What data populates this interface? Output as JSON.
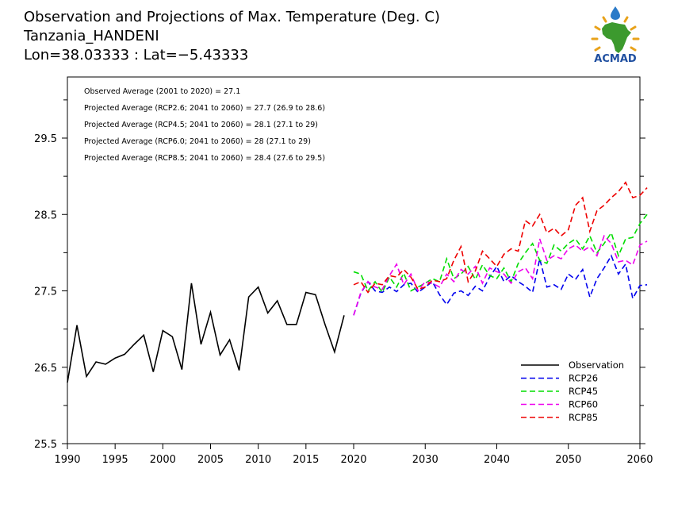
{
  "header": {
    "title": "Observation and Projections of Max. Temperature (Deg. C)",
    "location": "Tanzania_HANDENI",
    "coords": "Lon=38.03333 : Lat=−5.43333"
  },
  "logo": {
    "text": "ACMAD"
  },
  "stats": [
    "Observed Average (2001 to 2020) = 27.1",
    "Projected Average (RCP2.6; 2041 to 2060) = 27.7 (26.9 to 28.6)",
    "Projected Average (RCP4.5; 2041 to 2060) = 28.1 (27.1 to 29)",
    "Projected Average (RCP6.0; 2041 to 2060) = 28 (27.1 to 29)",
    "Projected Average (RCP8.5; 2041 to 2060) = 28.4 (27.6 to 29.5)"
  ],
  "chart_data": {
    "type": "line",
    "xlim": [
      1989.8,
      2060
    ],
    "ylim": [
      25.5,
      30.3
    ],
    "x_ticks": [
      1990,
      1995,
      2000,
      2005,
      2010,
      2015,
      2020,
      2030,
      2040,
      2050,
      2060
    ],
    "y_ticks": [
      25.5,
      26.5,
      27.5,
      28.5,
      29.5
    ],
    "y_minor_ticks": [
      26,
      27,
      28,
      29,
      30
    ],
    "legend_position": "bottom-right",
    "series": [
      {
        "name": "Observation",
        "color": "#000000",
        "dash": "solid",
        "x_start": 1990,
        "step": 1,
        "values": [
          26.3,
          27.05,
          26.38,
          26.57,
          26.54,
          26.62,
          26.67,
          26.8,
          26.92,
          26.44,
          26.98,
          26.9,
          26.47,
          27.6,
          26.8,
          27.22,
          26.66,
          26.86,
          26.46,
          27.42,
          27.55,
          27.21,
          27.37,
          27.06,
          27.06,
          27.48,
          27.45,
          27.06,
          26.7,
          27.18
        ]
      },
      {
        "name": "RCP26",
        "color": "#0000ee",
        "dash": "dashed",
        "x_start": 2020,
        "step": 1,
        "values": [
          27.18,
          27.47,
          27.62,
          27.5,
          27.48,
          27.55,
          27.49,
          27.58,
          27.6,
          27.48,
          27.55,
          27.62,
          27.45,
          27.32,
          27.47,
          27.5,
          27.44,
          27.56,
          27.5,
          27.68,
          27.82,
          27.62,
          27.7,
          27.62,
          27.56,
          27.48,
          27.92,
          27.55,
          27.58,
          27.52,
          27.72,
          27.65,
          27.78,
          27.42,
          27.66,
          27.8,
          27.96,
          27.72,
          27.85,
          27.4,
          27.57,
          27.58
        ]
      },
      {
        "name": "RCP45",
        "color": "#00dd00",
        "dash": "dashed",
        "x_start": 2020,
        "step": 1,
        "values": [
          27.75,
          27.72,
          27.5,
          27.62,
          27.48,
          27.68,
          27.55,
          27.73,
          27.5,
          27.55,
          27.6,
          27.66,
          27.62,
          27.92,
          27.66,
          27.72,
          27.82,
          27.65,
          27.84,
          27.7,
          27.66,
          27.8,
          27.62,
          27.86,
          28.0,
          28.12,
          27.9,
          27.86,
          28.1,
          28.02,
          28.12,
          28.18,
          28.05,
          28.22,
          28.0,
          28.12,
          28.26,
          27.96,
          28.18,
          28.2,
          28.38,
          28.5
        ]
      },
      {
        "name": "RCP60",
        "color": "#ee00ee",
        "dash": "dashed",
        "x_start": 2020,
        "step": 1,
        "values": [
          27.18,
          27.48,
          27.62,
          27.55,
          27.52,
          27.7,
          27.85,
          27.58,
          27.72,
          27.5,
          27.62,
          27.6,
          27.55,
          27.72,
          27.62,
          27.78,
          27.72,
          27.82,
          27.6,
          27.8,
          27.75,
          27.72,
          27.6,
          27.75,
          27.8,
          27.66,
          28.18,
          27.9,
          27.96,
          27.92,
          28.05,
          28.1,
          28.02,
          28.08,
          27.96,
          28.22,
          28.12,
          27.88,
          27.9,
          27.84,
          28.1,
          28.15
        ]
      },
      {
        "name": "RCP85",
        "color": "#ee0000",
        "dash": "dashed",
        "x_start": 2020,
        "step": 1,
        "values": [
          27.58,
          27.62,
          27.48,
          27.6,
          27.58,
          27.7,
          27.68,
          27.78,
          27.68,
          27.52,
          27.55,
          27.64,
          27.62,
          27.66,
          27.9,
          28.08,
          27.62,
          27.76,
          28.02,
          27.92,
          27.82,
          27.98,
          28.05,
          28.02,
          28.42,
          28.35,
          28.5,
          28.26,
          28.32,
          28.22,
          28.3,
          28.62,
          28.72,
          28.28,
          28.55,
          28.62,
          28.72,
          28.8,
          28.92,
          28.72,
          28.75,
          28.85
        ]
      }
    ]
  }
}
